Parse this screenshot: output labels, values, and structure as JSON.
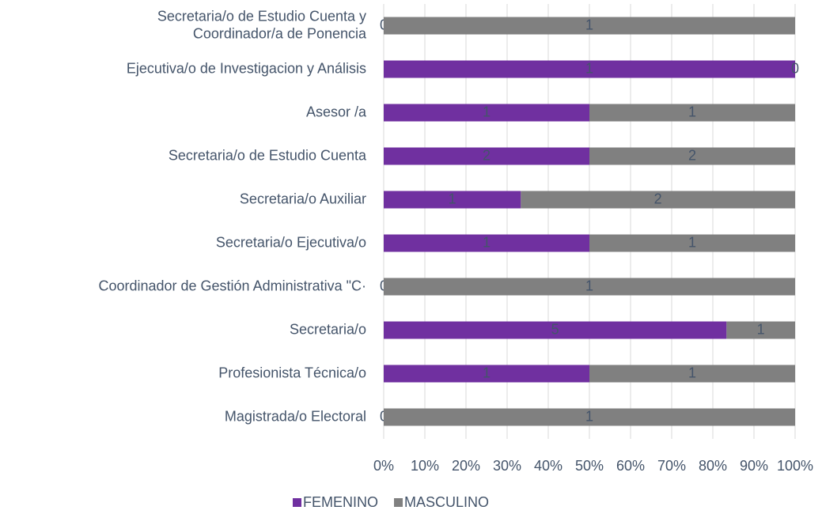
{
  "chart_data": {
    "type": "bar",
    "orientation": "horizontal",
    "stacked_percent": true,
    "categories": [
      "Secretaria/o de Estudio Cuenta y\nCoordinador/a de Ponencia",
      "Ejecutiva/o de Investigacion y Análisis",
      "Asesor /a",
      "Secretaria/o de Estudio Cuenta",
      "Secretaria/o Auxiliar",
      "Secretaria/o Ejecutiva/o",
      "Coordinador de Gestión Administrativa \"C·",
      "Secretaria/o",
      "Profesionista Técnica/o",
      "Magistrada/o Electoral"
    ],
    "series": [
      {
        "name": "FEMENINO",
        "color": "#7030a0",
        "values": [
          0,
          1,
          1,
          2,
          1,
          1,
          0,
          5,
          1,
          0
        ]
      },
      {
        "name": "MASCULINO",
        "color": "#808080",
        "values": [
          1,
          0,
          1,
          2,
          2,
          1,
          1,
          1,
          1,
          1
        ]
      }
    ],
    "xlim": [
      0,
      100
    ],
    "xticks": [
      {
        "value": 0,
        "label": "0%"
      },
      {
        "value": 10,
        "label": "10%"
      },
      {
        "value": 20,
        "label": "20%"
      },
      {
        "value": 30,
        "label": "30%"
      },
      {
        "value": 40,
        "label": "40%"
      },
      {
        "value": 50,
        "label": "50%"
      },
      {
        "value": 60,
        "label": "60%"
      },
      {
        "value": 70,
        "label": "70%"
      },
      {
        "value": 80,
        "label": "80%"
      },
      {
        "value": 90,
        "label": "90%"
      },
      {
        "value": 100,
        "label": "100%"
      }
    ],
    "grid": true,
    "legend": "bottom"
  }
}
